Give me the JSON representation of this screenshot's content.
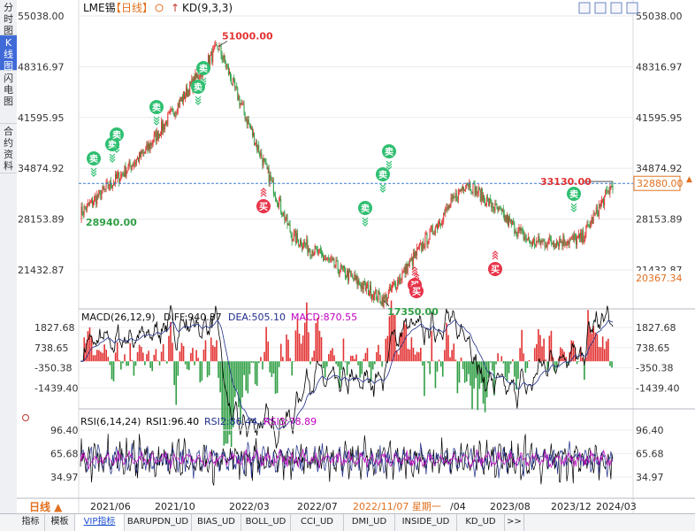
{
  "sidebar": {
    "tabs": [
      {
        "label": "分时图",
        "active": false
      },
      {
        "label": "K线图",
        "active": true
      },
      {
        "label": "闪电图",
        "active": false
      },
      {
        "label": "合约资料",
        "active": false
      }
    ]
  },
  "header": {
    "symbol": "LME锡",
    "period": "【日线】",
    "indicator": "KD(9,3,3)"
  },
  "price_axis": {
    "ticks": [
      "55038.00",
      "48316.97",
      "41595.95",
      "34874.92",
      "28153.89",
      "21432.87"
    ],
    "current_price": "32880.00",
    "low_label": "20367.34"
  },
  "annotations": {
    "high": "51000.00",
    "low": "17350.00",
    "start": "28940.00",
    "last_high": "33130.00",
    "sell_label": "卖",
    "buy_label": "买"
  },
  "macd": {
    "title": "MACD(26,12,9)",
    "diff": "DIFF:940.37",
    "dea": "DEA:505.10",
    "macd": "MACD:870.55",
    "ticks": [
      "1827.68",
      "738.65",
      "-350.38",
      "-1439.40"
    ]
  },
  "rsi": {
    "title": "RSI(6,14,24)",
    "rsi1": "RSI1:96.40",
    "rsi2": "RSI2:86.44",
    "rsi3": "RSI3:78.89",
    "ticks": [
      "96.40",
      "65.68",
      "34.97"
    ]
  },
  "time_axis": {
    "period_selector": "日线 ▲",
    "labels": [
      "2021/06",
      "2021/10",
      "2022/03",
      "2022/07",
      "/04",
      "2023/08",
      "2023/12",
      "2024/03"
    ],
    "highlight": "2022/11/07 星期一"
  },
  "bottom_tabs": [
    "指标",
    "模板",
    "VIP指标",
    "BARUPDN_UD",
    "BIAS_UD",
    "BOLL_UD",
    "CCI_UD",
    "DMI_UD",
    "INSIDE_UD",
    "KD_UD",
    ">>"
  ],
  "colors": {
    "up": "#e33333",
    "down": "#2f9e44",
    "sell_badge": "#2fbf71",
    "buy_badge": "#e8344a",
    "diff_line": "#000000",
    "dea_line": "#1f2d8a",
    "macd_text": "#c000c0",
    "rsi1": "#000000",
    "rsi2": "#1f2d8a",
    "rsi3": "#c000c0",
    "current_price_box": "#e07020"
  },
  "chart_data": [
    {
      "type": "candlestick",
      "title": "LME锡【日线】",
      "x": [
        "2021/06",
        "2021/10",
        "2022/03",
        "2022/07",
        "2022/11",
        "2023/04",
        "2023/08",
        "2023/12",
        "2024/03"
      ],
      "series": [
        {
          "name": "close",
          "values": [
            31000,
            38000,
            48000,
            26000,
            20000,
            27500,
            25000,
            25500,
            32880
          ]
        }
      ],
      "annotated_points": {
        "start": 28940,
        "high": 51000,
        "low": 17350,
        "last_high": 33130,
        "last": 32880
      },
      "ylim": [
        18500,
        55038
      ]
    },
    {
      "type": "bar",
      "title": "MACD(26,12,9)",
      "series": [
        {
          "name": "DIFF",
          "values": [
            940.37
          ]
        },
        {
          "name": "DEA",
          "values": [
            505.1
          ]
        },
        {
          "name": "MACD",
          "values": [
            870.55
          ]
        }
      ],
      "ylim": [
        -1900,
        1827.68
      ]
    },
    {
      "type": "line",
      "title": "RSI(6,14,24)",
      "series": [
        {
          "name": "RSI1",
          "values": [
            96.4
          ]
        },
        {
          "name": "RSI2",
          "values": [
            86.44
          ]
        },
        {
          "name": "RSI3",
          "values": [
            78.89
          ]
        }
      ],
      "ylim": [
        20,
        100
      ]
    }
  ]
}
